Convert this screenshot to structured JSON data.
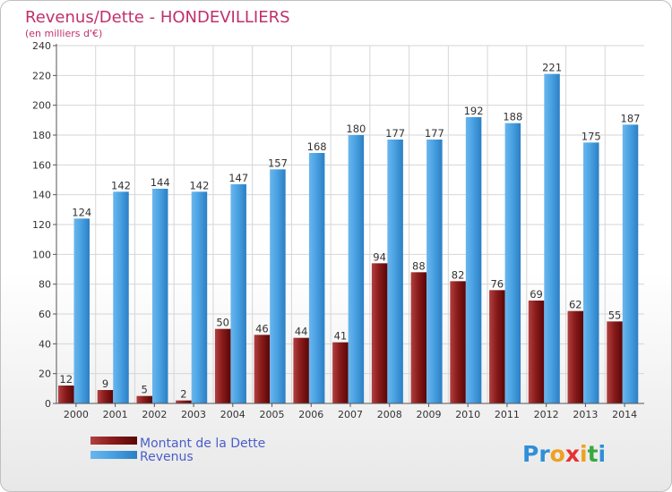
{
  "chart_data": {
    "type": "bar",
    "title": "Revenus/Dette - HONDEVILLIERS",
    "subtitle": "(en milliers d'€)",
    "categories": [
      "2000",
      "2001",
      "2002",
      "2003",
      "2004",
      "2005",
      "2006",
      "2007",
      "2008",
      "2009",
      "2010",
      "2011",
      "2012",
      "2013",
      "2014"
    ],
    "series": [
      {
        "name": "Montant de la Dette",
        "color": "#7a1010",
        "values": [
          12,
          9,
          5,
          2,
          50,
          46,
          44,
          41,
          94,
          88,
          82,
          76,
          69,
          62,
          55
        ]
      },
      {
        "name": "Revenus",
        "color": "#3f98dc",
        "values": [
          124,
          142,
          144,
          142,
          147,
          157,
          168,
          180,
          177,
          177,
          192,
          188,
          221,
          175,
          187
        ]
      }
    ],
    "ylim": [
      0,
      240
    ],
    "yticks": [
      0,
      20,
      40,
      60,
      80,
      100,
      120,
      140,
      160,
      180,
      200,
      220,
      240
    ],
    "grid": true,
    "legend_position": "bottom-left"
  },
  "logo": {
    "letters": [
      "P",
      "r",
      "o",
      "x",
      "i",
      "t",
      "i"
    ],
    "colors": [
      "#2f8fd8",
      "#2f8fd8",
      "#f0a020",
      "#e83030",
      "#f0a020",
      "#3aa840",
      "#2f8fd8"
    ]
  }
}
